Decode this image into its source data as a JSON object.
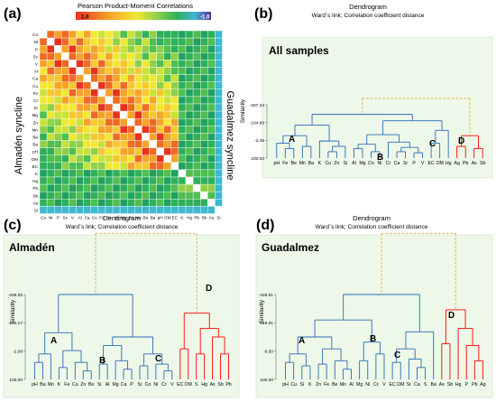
{
  "panel_a": {
    "letter": "(a)",
    "title": "Pearson Product-Moment Correlations",
    "scale_max": "1.0",
    "scale_min": "-1.0",
    "left_label": "Almadén syncline",
    "right_label": "Guadalmez syncline",
    "variables": [
      "Co",
      "Ni",
      "P",
      "Sc",
      "V",
      "Al",
      "Ca",
      "Cu",
      "Fe",
      "Cr",
      "Sr",
      "Mg",
      "Zn",
      "Mn",
      "Be",
      "Ba",
      "pH",
      "OM",
      "EC",
      "K",
      "Hg",
      "Pb",
      "Sb",
      "As",
      "Si"
    ]
  },
  "panel_b": {
    "letter": "(b)",
    "title": "Dendrogram",
    "subtitle": "Ward´s link; Correlation coefficient distance",
    "tag": "All samples",
    "ylabel": "Similarity",
    "yticks": [
      "-207.34",
      "-104.89",
      "-2.45",
      "100.00"
    ],
    "leaves": [
      "pH",
      "Fe",
      "Be",
      "Mn",
      "Ba",
      "K",
      "Cu",
      "Zn",
      "Si",
      "Al",
      "Mg",
      "Co",
      "Ni",
      "Cr",
      "Ca",
      "Sr",
      "P",
      "V",
      "EC",
      "OM",
      "Hg",
      "Ag",
      "Pb",
      "As",
      "Sb"
    ],
    "cluster_labels": [
      "A",
      "B",
      "C",
      "D"
    ]
  },
  "panel_c": {
    "letter": "(c)",
    "title": "Dendrogram",
    "subtitle": "Ward´s link; Correlation coefficient distance",
    "tag": "Almadén",
    "ylabel": "Similarity",
    "yticks": [
      "-206.25",
      "-104.17",
      "-2.08",
      "100.00"
    ],
    "leaves": [
      "pH",
      "Ba",
      "Mn",
      "K",
      "Fe",
      "Cu",
      "Zn",
      "Be",
      "Si",
      "Al",
      "Mg",
      "Ca",
      "P",
      "Sr",
      "Co",
      "Ni",
      "Cr",
      "V",
      "EC",
      "OM",
      "S",
      "Hg",
      "As",
      "Sb",
      "Pb"
    ],
    "cluster_labels": [
      "A",
      "B",
      "C",
      "D"
    ]
  },
  "panel_d": {
    "letter": "(d)",
    "title": "Dendrogram",
    "subtitle": "Ward´s link; Correlation coefficient distance",
    "tag": "Guadalmez",
    "ylabel": "Similarity",
    "yticks": [
      "-228.51",
      "-119.01",
      "-9.50",
      "100.00"
    ],
    "leaves": [
      "pH",
      "Cu",
      "Si",
      "K",
      "Zn",
      "Fe",
      "Be",
      "Mn",
      "Al",
      "Mg",
      "Ni",
      "Cr",
      "V",
      "EC",
      "OM",
      "Sr",
      "Ca",
      "S",
      "Ba",
      "As",
      "Sb",
      "Hg",
      "P",
      "Pb",
      "Ag"
    ],
    "cluster_labels": [
      "A",
      "B",
      "C",
      "D"
    ]
  },
  "colors": {
    "blue": "#2a6ab8",
    "red": "#b8332e",
    "dashed": "#d9a93a",
    "panel_bg": "#eef8e8"
  }
}
